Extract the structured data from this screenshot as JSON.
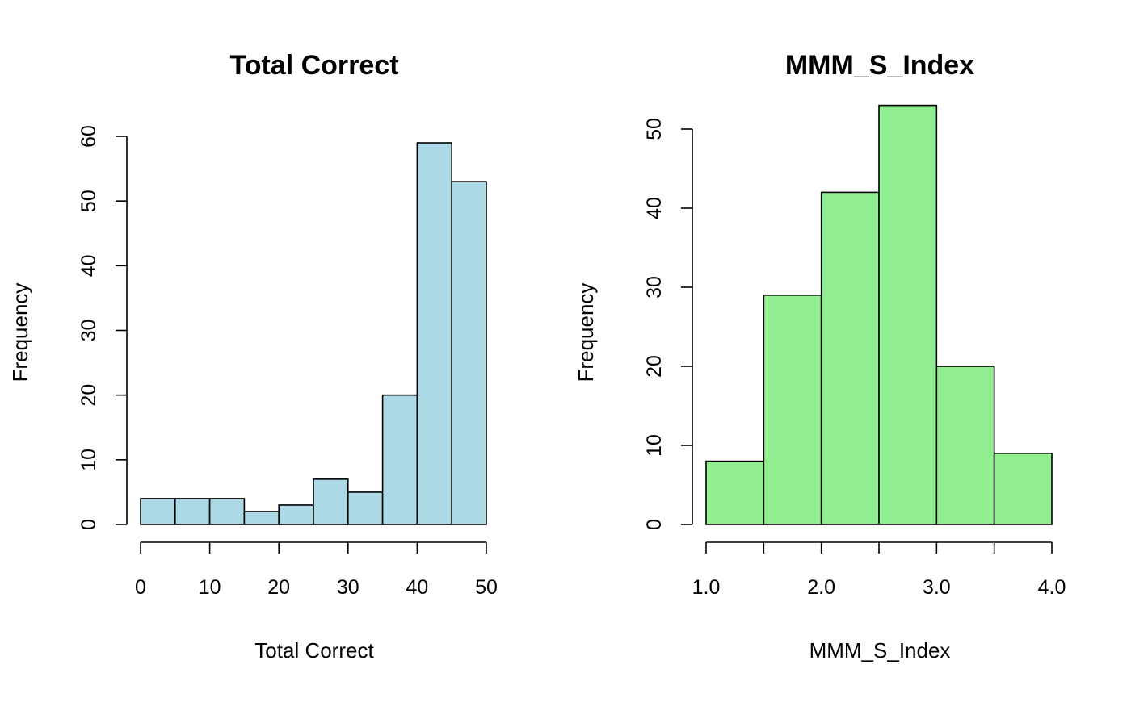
{
  "chart_data": [
    {
      "type": "bar",
      "title": "Total Correct",
      "xlabel": "Total Correct",
      "ylabel": "Frequency",
      "bar_color": "#ADD8E6",
      "bins": [
        [
          0,
          5
        ],
        [
          5,
          10
        ],
        [
          10,
          15
        ],
        [
          15,
          20
        ],
        [
          20,
          25
        ],
        [
          25,
          30
        ],
        [
          30,
          35
        ],
        [
          35,
          40
        ],
        [
          40,
          45
        ],
        [
          45,
          50
        ]
      ],
      "values": [
        4,
        4,
        4,
        2,
        3,
        7,
        5,
        20,
        59,
        53
      ],
      "xlim": [
        0,
        50
      ],
      "ylim": [
        0,
        60
      ],
      "x_ticks": [
        0,
        10,
        20,
        30,
        40,
        50
      ],
      "x_tick_labels": [
        "0",
        "10",
        "20",
        "30",
        "40",
        "50"
      ],
      "y_ticks": [
        0,
        10,
        20,
        30,
        40,
        50,
        60
      ],
      "y_tick_labels": [
        "0",
        "10",
        "20",
        "30",
        "40",
        "50",
        "60"
      ],
      "grid": false
    },
    {
      "type": "bar",
      "title": "MMM_S_Index",
      "xlabel": "MMM_S_Index",
      "ylabel": "Frequency",
      "bar_color": "#90EE90",
      "bins": [
        [
          1.0,
          1.5
        ],
        [
          1.5,
          2.0
        ],
        [
          2.0,
          2.5
        ],
        [
          2.5,
          3.0
        ],
        [
          3.0,
          3.5
        ],
        [
          3.5,
          4.0
        ]
      ],
      "values": [
        8,
        29,
        42,
        53,
        20,
        9
      ],
      "xlim": [
        1.0,
        4.0
      ],
      "ylim": [
        0,
        50
      ],
      "x_ticks": [
        1.0,
        1.5,
        2.0,
        2.5,
        3.0,
        3.5,
        4.0
      ],
      "x_tick_labels": [
        "1.0",
        "",
        "2.0",
        "",
        "3.0",
        "",
        "4.0"
      ],
      "y_ticks": [
        0,
        10,
        20,
        30,
        40,
        50
      ],
      "y_tick_labels": [
        "0",
        "10",
        "20",
        "30",
        "40",
        "50"
      ],
      "grid": false
    }
  ]
}
